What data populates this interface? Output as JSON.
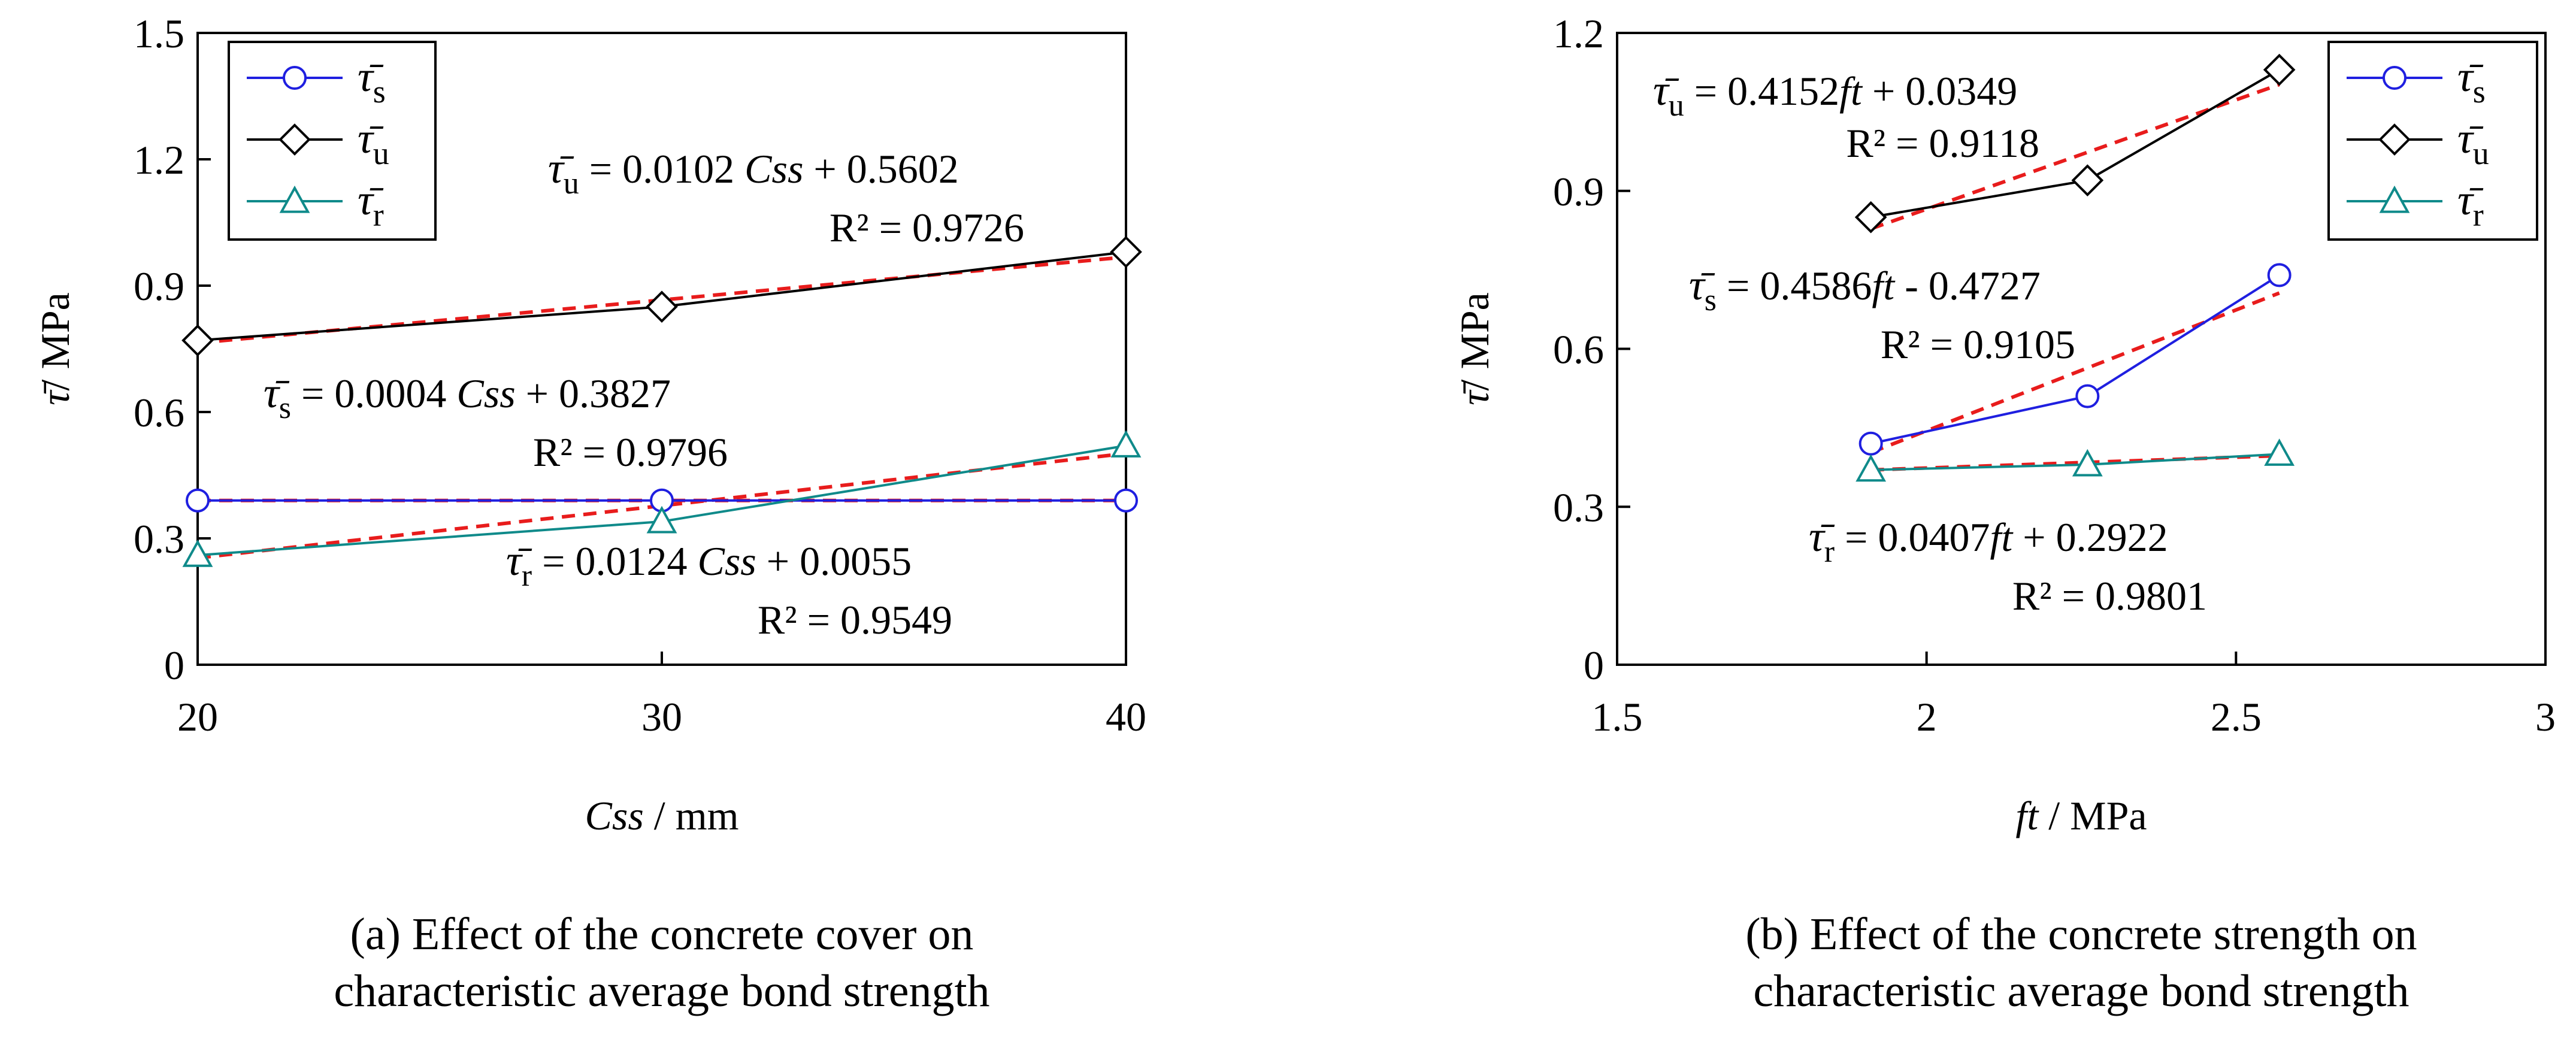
{
  "chart_data": [
    {
      "type": "line",
      "x_label": {
        "italic": "Css",
        "rest": " / mm"
      },
      "y_label": {
        "symbol": "τ̄",
        "rest": "/ MPa"
      },
      "xlim": [
        20,
        40
      ],
      "ylim": [
        0,
        1.5
      ],
      "x_ticks": [
        "20",
        "30",
        "40"
      ],
      "y_ticks": [
        "0",
        "0.3",
        "0.6",
        "0.9",
        "1.2",
        "1.5"
      ],
      "legend_placement": "top-left",
      "series": [
        {
          "name": "τ̄s",
          "sub": "s",
          "color": "#1f1fe0",
          "marker": "circle",
          "x": [
            20,
            30,
            40
          ],
          "y": [
            0.39,
            0.39,
            0.39
          ],
          "fit_y": [
            0.39,
            0.39,
            0.39
          ]
        },
        {
          "name": "τ̄u",
          "sub": "u",
          "color": "#000000",
          "marker": "diamond",
          "x": [
            20,
            30,
            40
          ],
          "y": [
            0.77,
            0.85,
            0.98
          ],
          "fit_y": [
            0.764,
            0.866,
            0.968
          ]
        },
        {
          "name": "τ̄r",
          "sub": "r",
          "color": "#0f8a8a",
          "marker": "triangle",
          "x": [
            20,
            30,
            40
          ],
          "y": [
            0.26,
            0.34,
            0.52
          ],
          "fit_y": [
            0.2535,
            0.3775,
            0.5015
          ]
        }
      ],
      "annotations": [
        {
          "sub": "u",
          "eq": " = 0.0102 ",
          "var": "Css",
          "tail": " + 0.5602",
          "r2": "R² = 0.9726"
        },
        {
          "sub": "s",
          "eq": " = 0.0004 ",
          "var": "Css",
          "tail": " + 0.3827",
          "r2": "R² = 0.9796"
        },
        {
          "sub": "r",
          "eq": " = 0.0124 ",
          "var": "Css",
          "tail": " + 0.0055",
          "r2": "R² = 0.9549"
        }
      ],
      "caption": [
        "(a) Effect of the concrete cover on",
        "characteristic average bond strength"
      ]
    },
    {
      "type": "line",
      "x_label": {
        "italic": "ft",
        "rest": " / MPa"
      },
      "y_label": {
        "symbol": "τ̄",
        "rest": "/ MPa"
      },
      "xlim": [
        1.5,
        3
      ],
      "ylim": [
        0,
        1.2
      ],
      "x_ticks": [
        "1.5",
        "2",
        "2.5",
        "3"
      ],
      "y_ticks": [
        "0",
        "0.3",
        "0.6",
        "0.9",
        "1.2"
      ],
      "legend_placement": "top-right",
      "series": [
        {
          "name": "τ̄s",
          "sub": "s",
          "color": "#1f1fe0",
          "marker": "circle",
          "x": [
            1.91,
            2.26,
            2.57
          ],
          "y": [
            0.42,
            0.51,
            0.74
          ],
          "fit_y": [
            0.403,
            0.564,
            0.706
          ]
        },
        {
          "name": "τ̄u",
          "sub": "u",
          "color": "#000000",
          "marker": "diamond",
          "x": [
            1.91,
            2.26,
            2.57
          ],
          "y": [
            0.85,
            0.92,
            1.13
          ],
          "fit_y": [
            0.828,
            0.973,
            1.102
          ]
        },
        {
          "name": "τ̄r",
          "sub": "r",
          "color": "#0f8a8a",
          "marker": "triangle",
          "x": [
            1.91,
            2.26,
            2.57
          ],
          "y": [
            0.37,
            0.38,
            0.4
          ],
          "fit_y": [
            0.37,
            0.384,
            0.397
          ]
        }
      ],
      "annotations": [
        {
          "sub": "u",
          "eq": " = 0.4152",
          "var": "ft",
          "tail": " + 0.0349",
          "r2": "R² = 0.9118"
        },
        {
          "sub": "s",
          "eq": " = 0.4586",
          "var": "ft",
          "tail": " - 0.4727",
          "r2": "R² = 0.9105"
        },
        {
          "sub": "r",
          "eq": " = 0.0407",
          "var": "ft",
          "tail": " + 0.2922",
          "r2": "R² = 0.9801"
        }
      ],
      "caption": [
        "(b) Effect of the concrete strength on",
        "characteristic average bond strength"
      ]
    }
  ],
  "colors": {
    "fit_line": "#e81c1c",
    "axis": "#000000"
  }
}
